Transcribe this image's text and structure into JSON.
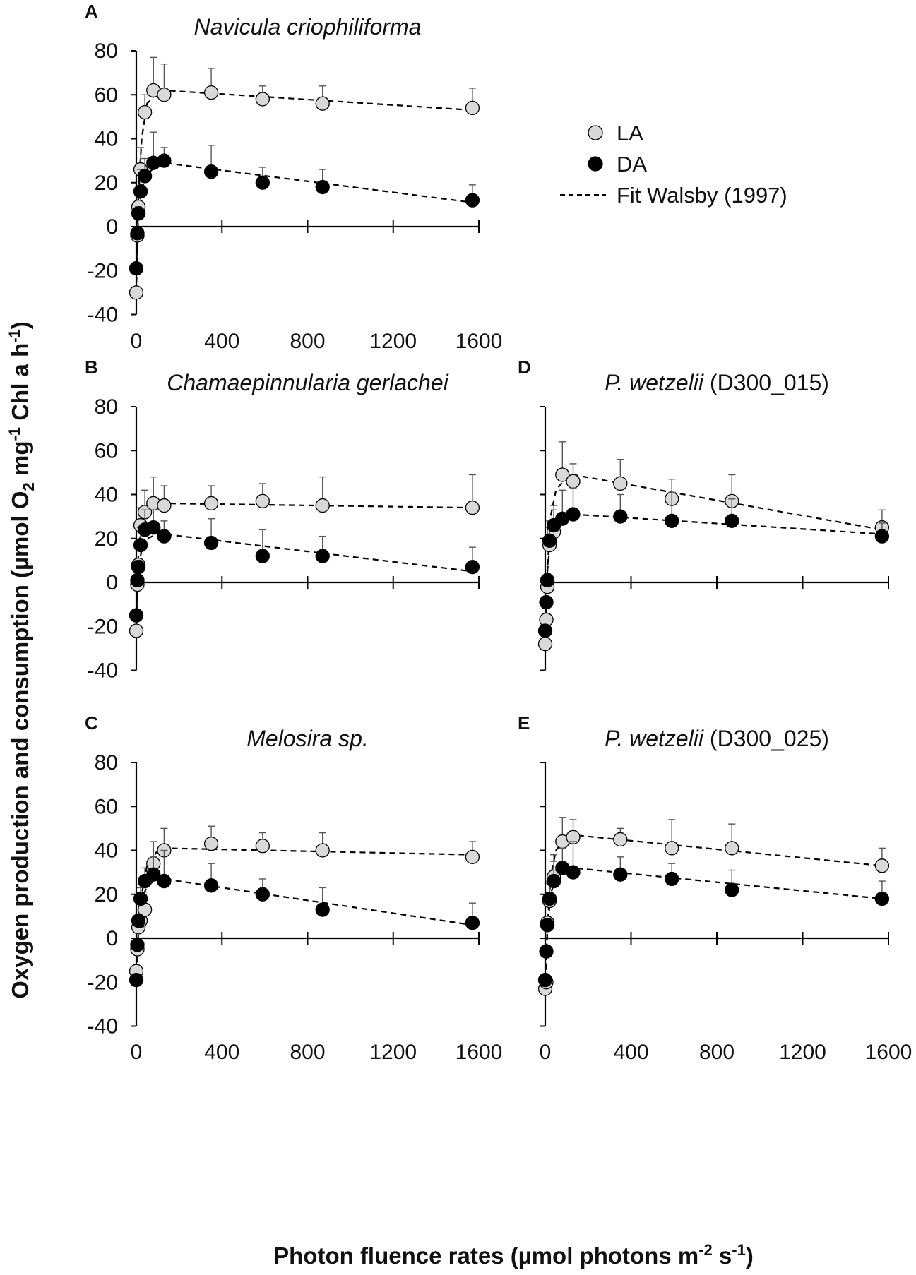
{
  "figure": {
    "ylabel_main": "Oxygen production and consumption (µmol O",
    "ylabel_sub_o2": "2",
    "ylabel_mid": " mg",
    "ylabel_sup_1": "-1",
    "ylabel_tail": " Chl a h",
    "ylabel_sup_2": "-1",
    "ylabel_close": ")",
    "xlabel_main": "Photon fluence rates (µmol photons m",
    "xlabel_sup_1": "-2",
    "xlabel_mid": " s",
    "xlabel_sup_2": "-1",
    "xlabel_close": ")"
  },
  "legend": {
    "la": "LA",
    "da": "DA",
    "fit": "Fit Walsby (1997)"
  },
  "colors": {
    "la_fill": "#d9d9d9",
    "da_fill": "#000000",
    "stroke": "#000000"
  },
  "chart_data": [
    {
      "panel": "A",
      "title_italic": "Navicula criophiliforma",
      "title_plain": "",
      "type": "scatter",
      "xlim": [
        0,
        1600
      ],
      "ylim": [
        -40,
        80
      ],
      "xticks": [
        "0",
        "400",
        "800",
        "1200",
        "1600"
      ],
      "yticks": [
        "-40",
        "-20",
        "0",
        "20",
        "40",
        "60",
        "80"
      ],
      "series": [
        {
          "name": "LA",
          "x": [
            0,
            5,
            10,
            20,
            40,
            80,
            130,
            350,
            590,
            870,
            1570
          ],
          "y": [
            -30,
            -4,
            9,
            26,
            52,
            62,
            60,
            61,
            58,
            56,
            54
          ],
          "err": [
            0,
            0,
            3,
            10,
            8,
            15,
            14,
            11,
            6,
            8,
            9
          ]
        },
        {
          "name": "DA",
          "x": [
            0,
            5,
            10,
            20,
            40,
            80,
            130,
            350,
            590,
            870,
            1570
          ],
          "y": [
            -19,
            -3,
            6,
            16,
            23,
            29,
            30,
            25,
            20,
            18,
            12
          ],
          "err": [
            0,
            0,
            3,
            10,
            8,
            14,
            6,
            12,
            7,
            8,
            7
          ]
        }
      ],
      "fits": [
        {
          "name": "LA fit",
          "x": [
            0,
            10,
            25,
            50,
            100,
            130,
            1570
          ],
          "y": [
            -30,
            15,
            40,
            56,
            61,
            62,
            53
          ]
        },
        {
          "name": "DA fit",
          "x": [
            0,
            10,
            25,
            50,
            100,
            130,
            1570
          ],
          "y": [
            -19,
            5,
            17,
            24,
            28,
            29,
            11
          ]
        }
      ]
    },
    {
      "panel": "B",
      "title_italic": "Chamaepinnularia gerlachei",
      "title_plain": "",
      "type": "scatter",
      "xlim": [
        0,
        1600
      ],
      "ylim": [
        -40,
        80
      ],
      "xticks": [],
      "yticks": [
        "-40",
        "-20",
        "0",
        "20",
        "40",
        "60",
        "80"
      ],
      "series": [
        {
          "name": "LA",
          "x": [
            0,
            5,
            10,
            20,
            40,
            80,
            130,
            350,
            590,
            870,
            1570
          ],
          "y": [
            -22,
            -1,
            8,
            26,
            32,
            36,
            35,
            36,
            37,
            35,
            34
          ],
          "err": [
            0,
            0,
            3,
            8,
            10,
            12,
            9,
            8,
            8,
            13,
            15
          ]
        },
        {
          "name": "DA",
          "x": [
            0,
            5,
            10,
            20,
            40,
            80,
            130,
            350,
            590,
            870,
            1570
          ],
          "y": [
            -15,
            1,
            7,
            17,
            24,
            25,
            21,
            18,
            12,
            12,
            7
          ],
          "err": [
            0,
            0,
            3,
            8,
            9,
            8,
            7,
            11,
            12,
            9,
            9
          ]
        }
      ],
      "fits": [
        {
          "name": "LA fit",
          "x": [
            0,
            10,
            25,
            50,
            100,
            130,
            1570
          ],
          "y": [
            -22,
            12,
            28,
            34,
            36,
            36,
            34
          ]
        },
        {
          "name": "DA fit",
          "x": [
            0,
            10,
            25,
            50,
            100,
            130,
            1570
          ],
          "y": [
            -15,
            6,
            15,
            20,
            22,
            22,
            5
          ]
        }
      ]
    },
    {
      "panel": "C",
      "title_italic": "Melosira sp.",
      "title_plain": "",
      "type": "scatter",
      "xlim": [
        0,
        1600
      ],
      "ylim": [
        -40,
        80
      ],
      "xticks": [
        "0",
        "400",
        "800",
        "1200",
        "1600"
      ],
      "yticks": [
        "-40",
        "-20",
        "0",
        "20",
        "40",
        "60",
        "80"
      ],
      "series": [
        {
          "name": "LA",
          "x": [
            0,
            5,
            10,
            20,
            40,
            80,
            130,
            350,
            590,
            870,
            1570
          ],
          "y": [
            -15,
            -5,
            5,
            8,
            13,
            34,
            40,
            43,
            42,
            40,
            37
          ],
          "err": [
            0,
            0,
            3,
            5,
            8,
            10,
            10,
            8,
            6,
            8,
            7
          ]
        },
        {
          "name": "DA",
          "x": [
            0,
            5,
            10,
            20,
            40,
            80,
            130,
            350,
            590,
            870,
            1570
          ],
          "y": [
            -19,
            -3,
            8,
            18,
            26,
            29,
            26,
            24,
            20,
            13,
            7
          ],
          "err": [
            0,
            0,
            3,
            5,
            6,
            8,
            14,
            10,
            7,
            10,
            9
          ]
        }
      ],
      "fits": [
        {
          "name": "LA fit",
          "x": [
            0,
            10,
            25,
            50,
            100,
            130,
            1570
          ],
          "y": [
            -19,
            3,
            20,
            33,
            40,
            41,
            38
          ]
        },
        {
          "name": "DA fit",
          "x": [
            0,
            10,
            25,
            50,
            100,
            130,
            1570
          ],
          "y": [
            -20,
            5,
            17,
            24,
            27,
            27,
            6
          ]
        }
      ]
    },
    {
      "panel": "D",
      "title_italic": "P. wetzelii",
      "title_plain": " (D300_015)",
      "type": "scatter",
      "xlim": [
        0,
        1600
      ],
      "ylim": [
        -40,
        80
      ],
      "xticks": [],
      "yticks": [],
      "series": [
        {
          "name": "LA",
          "x": [
            0,
            5,
            10,
            20,
            40,
            80,
            130,
            350,
            590,
            870,
            1570
          ],
          "y": [
            -28,
            -17,
            -2,
            17,
            23,
            49,
            46,
            45,
            38,
            37,
            25
          ],
          "err": [
            0,
            0,
            3,
            8,
            10,
            15,
            8,
            11,
            9,
            12,
            8
          ]
        },
        {
          "name": "DA",
          "x": [
            0,
            5,
            10,
            20,
            40,
            80,
            130,
            350,
            590,
            870,
            1570
          ],
          "y": [
            -22,
            -9,
            1,
            19,
            26,
            29,
            31,
            30,
            28,
            28,
            21
          ],
          "err": [
            0,
            0,
            3,
            9,
            9,
            13,
            12,
            10,
            13,
            10,
            6
          ]
        }
      ],
      "fits": [
        {
          "name": "LA fit",
          "x": [
            0,
            10,
            25,
            50,
            100,
            130,
            1570
          ],
          "y": [
            -28,
            5,
            30,
            42,
            48,
            49,
            24
          ]
        },
        {
          "name": "DA fit",
          "x": [
            0,
            10,
            25,
            50,
            100,
            130,
            1570
          ],
          "y": [
            -22,
            5,
            20,
            27,
            30,
            31,
            22
          ]
        }
      ]
    },
    {
      "panel": "E",
      "title_italic": "P. wetzelii",
      "title_plain": " (D300_025)",
      "type": "scatter",
      "xlim": [
        0,
        1600
      ],
      "ylim": [
        -40,
        80
      ],
      "xticks": [
        "0",
        "400",
        "800",
        "1200",
        "1600"
      ],
      "yticks": [],
      "series": [
        {
          "name": "LA",
          "x": [
            0,
            5,
            10,
            20,
            40,
            80,
            130,
            350,
            590,
            870,
            1570
          ],
          "y": [
            -23,
            -20,
            7,
            17,
            28,
            44,
            46,
            45,
            41,
            41,
            33
          ],
          "err": [
            0,
            0,
            3,
            8,
            10,
            11,
            8,
            5,
            13,
            11,
            8
          ]
        },
        {
          "name": "DA",
          "x": [
            0,
            5,
            10,
            20,
            40,
            80,
            130,
            350,
            590,
            870,
            1570
          ],
          "y": [
            -19,
            -6,
            6,
            18,
            26,
            32,
            30,
            29,
            27,
            22,
            18
          ],
          "err": [
            0,
            0,
            3,
            8,
            9,
            9,
            14,
            8,
            7,
            9,
            8
          ]
        }
      ],
      "fits": [
        {
          "name": "LA fit",
          "x": [
            0,
            10,
            25,
            50,
            100,
            130,
            1570
          ],
          "y": [
            -23,
            4,
            28,
            40,
            46,
            47,
            33
          ]
        },
        {
          "name": "DA fit",
          "x": [
            0,
            10,
            25,
            50,
            100,
            130,
            1570
          ],
          "y": [
            -19,
            3,
            20,
            28,
            32,
            32,
            18
          ]
        }
      ]
    }
  ]
}
